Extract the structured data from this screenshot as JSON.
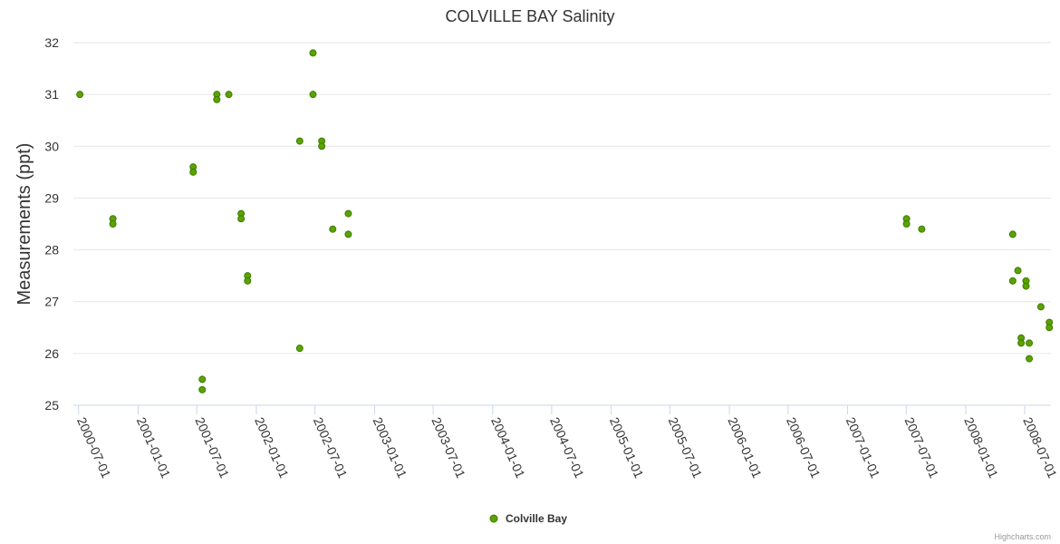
{
  "chart_data": {
    "type": "scatter",
    "title": "COLVILLE BAY Salinity",
    "xlabel": "",
    "ylabel": "Measurements (ppt)",
    "ylim": [
      25,
      32
    ],
    "yticks": [
      25,
      26,
      27,
      28,
      29,
      30,
      31,
      32
    ],
    "xlim": [
      "2000-06-15",
      "2008-09-20"
    ],
    "xticks": [
      "2000-07-01",
      "2001-01-01",
      "2001-07-01",
      "2002-01-01",
      "2002-07-01",
      "2003-01-01",
      "2003-07-01",
      "2004-01-01",
      "2004-07-01",
      "2005-01-01",
      "2005-07-01",
      "2006-01-01",
      "2006-07-01",
      "2007-01-01",
      "2007-07-01",
      "2008-01-01",
      "2008-07-01"
    ],
    "legend": "bottom-center",
    "grid": true,
    "series": [
      {
        "name": "Colville Bay",
        "color": "#5ba300",
        "points": [
          {
            "x": "2000-07-05",
            "y": 31.0
          },
          {
            "x": "2000-10-15",
            "y": 28.6
          },
          {
            "x": "2000-10-15",
            "y": 28.5
          },
          {
            "x": "2001-06-20",
            "y": 29.6
          },
          {
            "x": "2001-06-20",
            "y": 29.5
          },
          {
            "x": "2001-07-18",
            "y": 25.5
          },
          {
            "x": "2001-07-18",
            "y": 25.3
          },
          {
            "x": "2001-09-01",
            "y": 31.0
          },
          {
            "x": "2001-09-01",
            "y": 30.9
          },
          {
            "x": "2001-10-08",
            "y": 31.0
          },
          {
            "x": "2001-11-15",
            "y": 28.7
          },
          {
            "x": "2001-11-15",
            "y": 28.6
          },
          {
            "x": "2001-12-05",
            "y": 27.5
          },
          {
            "x": "2001-12-05",
            "y": 27.4
          },
          {
            "x": "2002-05-15",
            "y": 30.1
          },
          {
            "x": "2002-05-15",
            "y": 26.1
          },
          {
            "x": "2002-06-25",
            "y": 31.8
          },
          {
            "x": "2002-06-25",
            "y": 31.0
          },
          {
            "x": "2002-07-22",
            "y": 30.1
          },
          {
            "x": "2002-07-22",
            "y": 30.0
          },
          {
            "x": "2002-08-25",
            "y": 28.4
          },
          {
            "x": "2002-10-12",
            "y": 28.7
          },
          {
            "x": "2002-10-12",
            "y": 28.3
          },
          {
            "x": "2007-07-02",
            "y": 28.6
          },
          {
            "x": "2007-07-02",
            "y": 28.5
          },
          {
            "x": "2007-08-18",
            "y": 28.4
          },
          {
            "x": "2008-05-25",
            "y": 28.3
          },
          {
            "x": "2008-05-25",
            "y": 27.4
          },
          {
            "x": "2008-06-10",
            "y": 27.6
          },
          {
            "x": "2008-06-20",
            "y": 26.3
          },
          {
            "x": "2008-06-20",
            "y": 26.2
          },
          {
            "x": "2008-07-05",
            "y": 27.4
          },
          {
            "x": "2008-07-05",
            "y": 27.3
          },
          {
            "x": "2008-07-15",
            "y": 26.2
          },
          {
            "x": "2008-07-15",
            "y": 25.9
          },
          {
            "x": "2008-08-20",
            "y": 26.9
          },
          {
            "x": "2008-09-15",
            "y": 26.6
          },
          {
            "x": "2008-09-15",
            "y": 26.5
          }
        ]
      }
    ]
  },
  "credits": "Highcharts.com"
}
